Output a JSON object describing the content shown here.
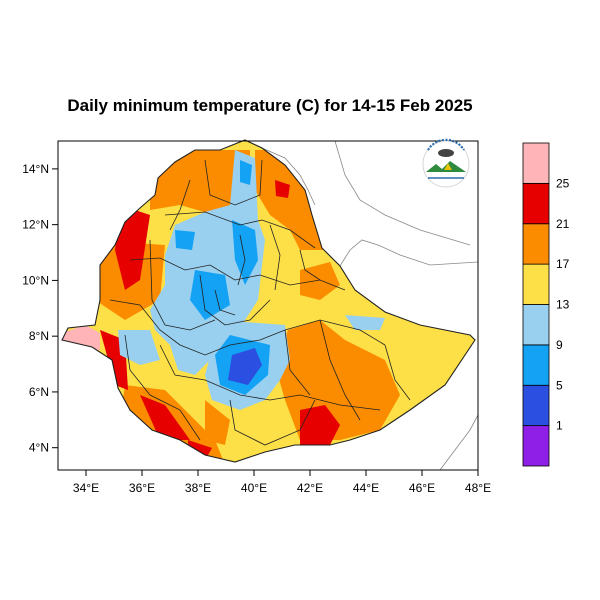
{
  "title": "Daily minimum temperature (C) for 14-15 Feb 2025",
  "map": {
    "lon_range": [
      33,
      48
    ],
    "lat_range": [
      3.2,
      15
    ],
    "x_ticks": [
      "34°E",
      "36°E",
      "38°E",
      "40°E",
      "42°E",
      "44°E",
      "46°E",
      "48°E"
    ],
    "x_tick_values": [
      34,
      36,
      38,
      40,
      42,
      44,
      46,
      48
    ],
    "y_ticks": [
      "14°N",
      "12°N",
      "10°N",
      "8°N",
      "6°N",
      "4°N"
    ],
    "y_tick_values": [
      14,
      12,
      10,
      8,
      6,
      4
    ],
    "logo_icon": "ethiopian-meteorology-institute-logo"
  },
  "colorbar": {
    "levels": [
      "1",
      "5",
      "9",
      "13",
      "17",
      "21",
      "25"
    ],
    "colors": [
      "#8f1fe6",
      "#2b4fe0",
      "#14a2f5",
      "#99d0f0",
      "#fde047",
      "#fb8c00",
      "#e60000",
      "#ffb4b8"
    ]
  }
}
